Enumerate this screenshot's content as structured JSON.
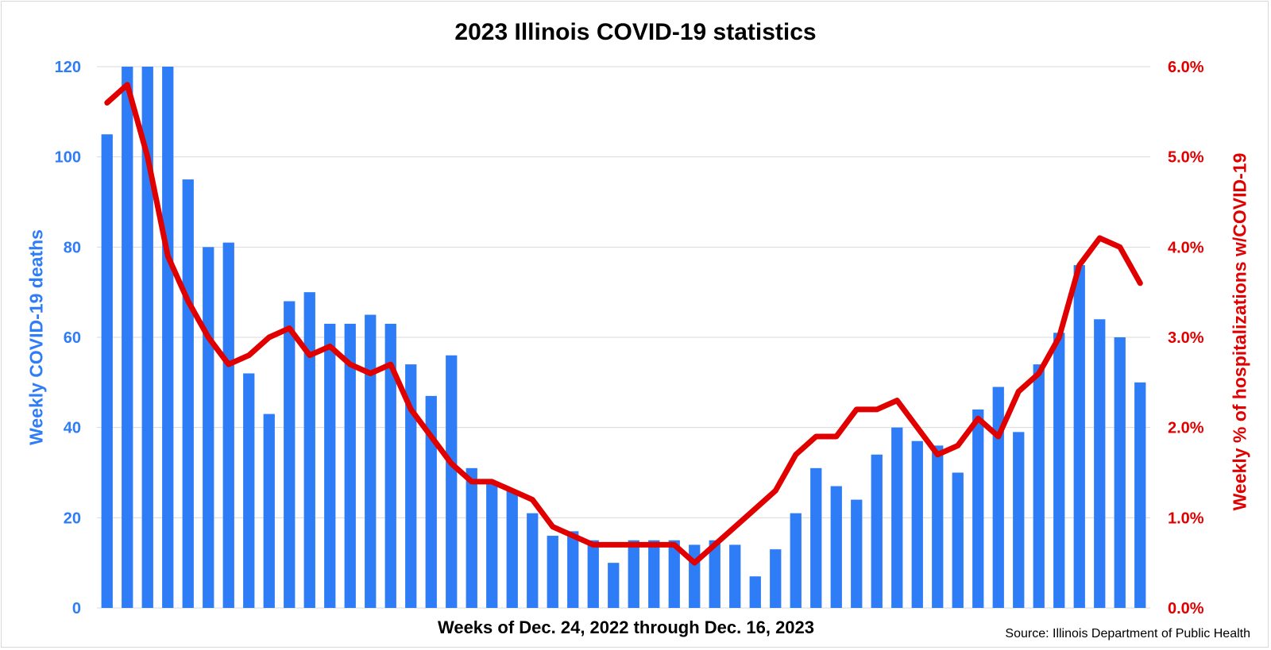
{
  "chart_data": {
    "type": "bar",
    "title": "2023 Illinois COVID-19 statistics",
    "xlabel": "Weeks of Dec. 24, 2022 through Dec. 16, 2023",
    "source": "Source: Illinois Department of Public Health",
    "grid": true,
    "y_left": {
      "label": "Weekly COVID-19 deaths",
      "range": [
        0,
        120
      ],
      "ticks": [
        "0",
        "20",
        "40",
        "60",
        "80",
        "100",
        "120"
      ],
      "tick_values": [
        0,
        20,
        40,
        60,
        80,
        100,
        120
      ],
      "color": "#2f7df6"
    },
    "y_right": {
      "label": "Weekly % of hospitalizations w/COVID-19",
      "range": [
        0,
        6
      ],
      "ticks": [
        "0.0%",
        "1.0%",
        "2.0%",
        "3.0%",
        "4.0%",
        "5.0%",
        "6.0%"
      ],
      "tick_values": [
        0,
        1,
        2,
        3,
        4,
        5,
        6
      ],
      "color": "#e00000"
    },
    "series": [
      {
        "type": "bar",
        "axis": "left",
        "color": "#2f7df6",
        "values": [
          105,
          120,
          120,
          120,
          95,
          80,
          81,
          52,
          43,
          68,
          70,
          63,
          63,
          65,
          63,
          54,
          47,
          56,
          31,
          28,
          26,
          21,
          16,
          17,
          15,
          10,
          15,
          15,
          15,
          14,
          15,
          14,
          7,
          13,
          21,
          31,
          27,
          24,
          34,
          40,
          37,
          36,
          30,
          44,
          49,
          39,
          54,
          61,
          76,
          64,
          60,
          50
        ]
      },
      {
        "type": "line",
        "axis": "right",
        "color": "#e00000",
        "values": [
          5.6,
          5.8,
          5.0,
          3.9,
          3.4,
          3.0,
          2.7,
          2.8,
          3.0,
          3.1,
          2.8,
          2.9,
          2.7,
          2.6,
          2.7,
          2.2,
          1.9,
          1.6,
          1.4,
          1.4,
          1.3,
          1.2,
          0.9,
          0.8,
          0.7,
          0.7,
          0.7,
          0.7,
          0.7,
          0.5,
          0.7,
          0.9,
          1.1,
          1.3,
          1.7,
          1.9,
          1.9,
          2.2,
          2.2,
          2.3,
          2.0,
          1.7,
          1.8,
          2.1,
          1.9,
          2.4,
          2.6,
          3.0,
          3.8,
          4.1,
          4.0,
          3.6
        ]
      }
    ]
  }
}
